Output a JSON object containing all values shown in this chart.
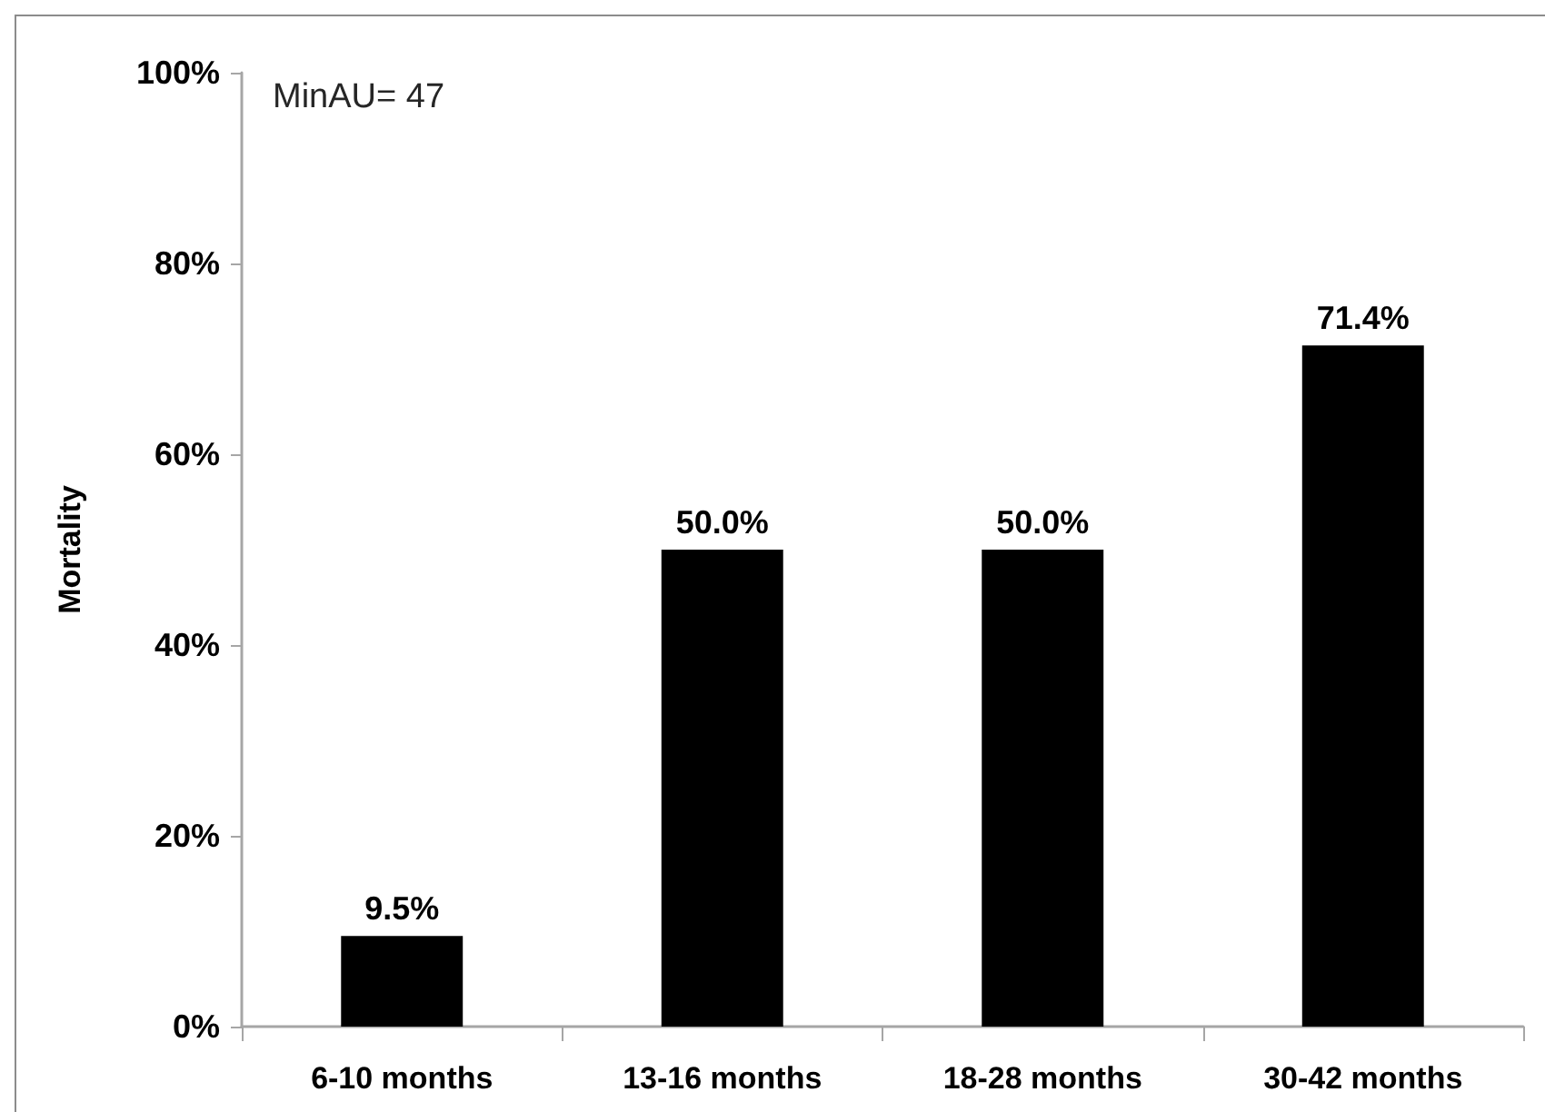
{
  "chart_data": {
    "type": "bar",
    "ylabel": "Mortality",
    "annotations": [
      "MinAU= 47"
    ],
    "categories": [
      "6-10 months",
      "13-16 months",
      "18-28 months",
      "30-42 months"
    ],
    "values": [
      9.5,
      50.0,
      50.0,
      71.4
    ],
    "color": "#000000",
    "value_labels": [
      "9.5%",
      "50.0%",
      "50.0%",
      "71.4%"
    ],
    "ylim": [
      0,
      100
    ],
    "yticks": [
      {
        "value": 0,
        "label": "0%"
      },
      {
        "value": 20,
        "label": "20%"
      },
      {
        "value": 40,
        "label": "40%"
      },
      {
        "value": 60,
        "label": "60%"
      },
      {
        "value": 80,
        "label": "80%"
      },
      {
        "value": 100,
        "label": "100%"
      }
    ]
  }
}
